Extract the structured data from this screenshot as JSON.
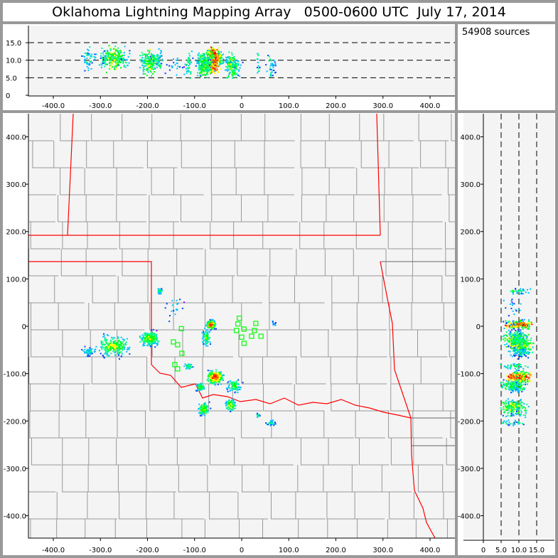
{
  "title": "Oklahoma Lightning Mapping Array   0500-0600 UTC  July 17, 2014",
  "source_count": "54908 sources",
  "colors": {
    "frame": "#999999",
    "plot_bg": "#f4f4f4",
    "state_border": "#ff0000",
    "county_border": "#999999",
    "station": "#00ff00",
    "density_scale": [
      "#8000ff",
      "#0040ff",
      "#00c0ff",
      "#00ff80",
      "#00ff00",
      "#ffff00",
      "#ff8000",
      "#ff0000"
    ]
  },
  "chart_data": [
    {
      "type": "scatter",
      "panel": "altitude-vs-east-west",
      "xlim": [
        -450,
        450
      ],
      "ylim": [
        0,
        19.5
      ],
      "xticks": [
        "-400.0",
        "-300.0",
        "-200.0",
        "-100.0",
        "0",
        "100.0",
        "200.0",
        "300.0",
        "400.0"
      ],
      "yticks": [
        "0",
        "5.0",
        "10.0",
        "15.0"
      ],
      "grid": "dashed at 5, 10, 15 km"
    },
    {
      "type": "scatter",
      "panel": "plan-view-map",
      "xlim": [
        -450,
        450
      ],
      "ylim": [
        -450,
        450
      ],
      "xticks": [
        "-400.0",
        "-300.0",
        "-200.0",
        "-100.0",
        "0",
        "100.0",
        "200.0",
        "300.0",
        "400.0"
      ],
      "yticks": [
        "-400.0",
        "-300.0",
        "-200.0",
        "-100.0",
        "0",
        "100.0",
        "200.0",
        "300.0",
        "400.0"
      ],
      "source_clusters_km": [
        {
          "x": -65,
          "y": 3,
          "alt": 10,
          "n": 170,
          "sx": 6,
          "sy": 6,
          "peak": 1.0
        },
        {
          "x": -75,
          "y": -24,
          "alt": 9,
          "n": 70,
          "sx": 6,
          "sy": 12,
          "peak": 0.5
        },
        {
          "x": -196,
          "y": -26,
          "alt": 9.5,
          "n": 160,
          "sx": 14,
          "sy": 10,
          "peak": 0.6
        },
        {
          "x": -272,
          "y": -42,
          "alt": 10.5,
          "n": 220,
          "sx": 22,
          "sy": 14,
          "peak": 0.6
        },
        {
          "x": -325,
          "y": -54,
          "alt": 10.5,
          "n": 50,
          "sx": 10,
          "sy": 6,
          "peak": 0.3
        },
        {
          "x": -56,
          "y": -107,
          "alt": 10,
          "n": 230,
          "sx": 11,
          "sy": 9,
          "peak": 1.0
        },
        {
          "x": -88,
          "y": -129,
          "alt": 9,
          "n": 60,
          "sx": 6,
          "sy": 6,
          "peak": 0.5
        },
        {
          "x": -15,
          "y": -126,
          "alt": 8,
          "n": 80,
          "sx": 10,
          "sy": 9,
          "peak": 0.5
        },
        {
          "x": -80,
          "y": -174,
          "alt": 9,
          "n": 90,
          "sx": 8,
          "sy": 10,
          "peak": 0.6
        },
        {
          "x": -23,
          "y": -167,
          "alt": 8.5,
          "n": 90,
          "sx": 8,
          "sy": 9,
          "peak": 0.6
        },
        {
          "x": -113,
          "y": -84,
          "alt": 9,
          "n": 40,
          "sx": 6,
          "sy": 4,
          "peak": 0.4
        },
        {
          "x": 63,
          "y": -204,
          "alt": 8,
          "n": 30,
          "sx": 7,
          "sy": 4,
          "peak": 0.3
        },
        {
          "x": 35,
          "y": -188,
          "alt": 9,
          "n": 15,
          "sx": 3,
          "sy": 3,
          "peak": 0.3
        },
        {
          "x": -174,
          "y": 74,
          "alt": 10,
          "n": 35,
          "sx": 4,
          "sy": 4,
          "peak": 0.4
        },
        {
          "x": -140,
          "y": 40,
          "alt": 9,
          "n": 20,
          "sx": 12,
          "sy": 20,
          "peak": 0.2
        },
        {
          "x": 68,
          "y": 6,
          "alt": 8,
          "n": 10,
          "sx": 4,
          "sy": 4,
          "peak": 0.2
        }
      ],
      "stations_km": [
        [
          -5,
          17
        ],
        [
          -8,
          5
        ],
        [
          -11,
          -9
        ],
        [
          5,
          -6
        ],
        [
          0,
          -23
        ],
        [
          5,
          -36
        ],
        [
          30,
          6
        ],
        [
          27,
          -9
        ],
        [
          21,
          -21
        ],
        [
          41,
          -21
        ],
        [
          -136,
          -39
        ],
        [
          -128,
          -5
        ],
        [
          -145,
          -33
        ],
        [
          -127,
          -57
        ],
        [
          -142,
          -81
        ],
        [
          -136,
          -90
        ]
      ]
    },
    {
      "type": "scatter",
      "panel": "north-south-vs-altitude",
      "xlim": [
        -5.5,
        20
      ],
      "ylim": [
        -450,
        450
      ],
      "xticks": [
        "0",
        "5.0",
        "10.0",
        "15.0"
      ],
      "grid": "dashed at 5, 10, 15 km"
    }
  ]
}
